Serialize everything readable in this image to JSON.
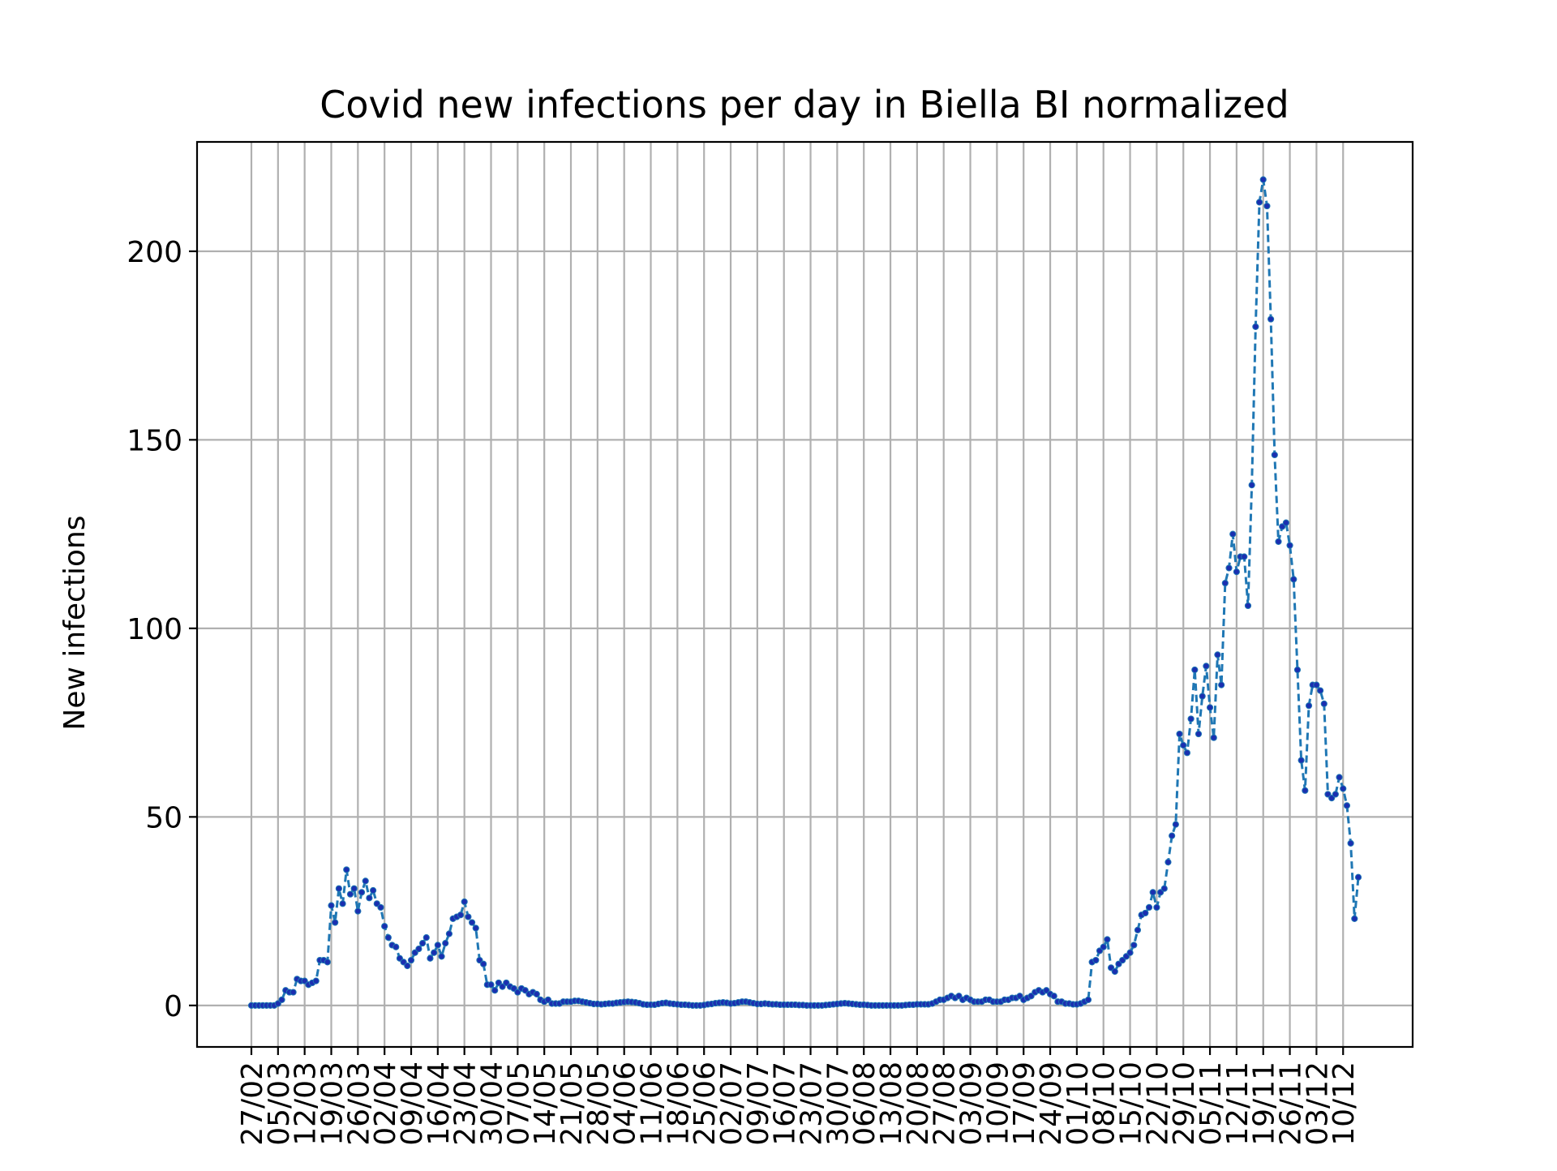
{
  "chart_data": {
    "type": "line",
    "title": "Covid new infections per day in Biella BI normalized",
    "xlabel": "",
    "ylabel": "New infections",
    "ylim": [
      -11,
      229
    ],
    "yticks": [
      0,
      50,
      100,
      150,
      200
    ],
    "grid": true,
    "line_style": "dashed",
    "marker": "dot",
    "colors": {
      "line": "#1f77b4",
      "marker": "#1a2fb0"
    },
    "xtick_labels": [
      "27/02",
      "05/03",
      "12/03",
      "19/03",
      "26/03",
      "02/04",
      "09/04",
      "16/04",
      "23/04",
      "30/04",
      "07/05",
      "14/05",
      "21/05",
      "28/05",
      "04/06",
      "11/06",
      "18/06",
      "25/06",
      "02/07",
      "09/07",
      "16/07",
      "23/07",
      "30/07",
      "06/08",
      "13/08",
      "20/08",
      "27/08",
      "03/09",
      "10/09",
      "17/09",
      "24/09",
      "01/10",
      "08/10",
      "15/10",
      "22/10",
      "29/10",
      "05/11",
      "12/11",
      "19/11",
      "26/11",
      "03/12",
      "10/12"
    ],
    "series": [
      {
        "values": [
          0,
          0,
          0,
          0,
          0,
          0,
          0,
          0.5,
          1.5,
          4,
          3.5,
          3.5,
          7,
          6.5,
          6.5,
          5.5,
          6,
          6.5,
          12,
          12,
          11.5,
          26.5,
          22,
          31,
          27,
          36,
          29.5,
          31,
          25,
          30,
          33,
          28.5,
          30.5,
          27,
          26,
          21,
          18,
          16,
          15.5,
          12.5,
          11.5,
          10.5,
          12,
          14,
          15,
          16.5,
          18,
          12.5,
          14,
          16,
          13,
          16.5,
          19,
          23,
          23.5,
          24,
          27.5,
          23.5,
          22,
          20.5,
          12,
          11,
          5.5,
          5.5,
          4,
          6,
          5,
          6,
          5,
          4.5,
          3.5,
          4.5,
          4,
          3,
          3.5,
          3,
          1.5,
          1,
          1.5,
          0.5,
          0.5,
          0.5,
          1,
          1,
          1,
          1.2,
          1.2,
          1,
          0.8,
          0.6,
          0.4,
          0.4,
          0.3,
          0.4,
          0.5,
          0.5,
          0.7,
          0.8,
          0.9,
          1,
          0.9,
          0.8,
          0.6,
          0.3,
          0.2,
          0.2,
          0.2,
          0.4,
          0.6,
          0.7,
          0.5,
          0.4,
          0.3,
          0.2,
          0.2,
          0.1,
          0,
          0,
          0,
          0.1,
          0.3,
          0.4,
          0.6,
          0.7,
          0.8,
          0.7,
          0.5,
          0.6,
          0.8,
          1,
          1,
          0.8,
          0.6,
          0.4,
          0.4,
          0.5,
          0.4,
          0.3,
          0.3,
          0.2,
          0.2,
          0.2,
          0.2,
          0.2,
          0.1,
          0.1,
          0,
          0,
          0,
          0,
          0,
          0.1,
          0.2,
          0.3,
          0.4,
          0.5,
          0.6,
          0.5,
          0.4,
          0.3,
          0.2,
          0.2,
          0.1,
          0,
          0,
          0,
          0,
          0,
          0,
          0,
          0,
          0,
          0.1,
          0.2,
          0.2,
          0.3,
          0.3,
          0.3,
          0.3,
          0.5,
          1,
          1.5,
          1.5,
          2,
          2.5,
          2,
          2.5,
          1.5,
          2,
          1.5,
          1,
          1,
          1,
          1.5,
          1.5,
          1,
          1,
          1,
          1.5,
          1.5,
          2,
          2,
          2.5,
          1.5,
          2,
          2.5,
          3.5,
          4,
          3.5,
          4,
          3,
          2.5,
          1,
          1,
          0.5,
          0.5,
          0.3,
          0.3,
          0.5,
          1,
          1.5,
          11.5,
          12,
          14.5,
          15.5,
          17.5,
          10,
          9,
          11,
          12,
          13,
          14,
          16,
          20,
          24,
          24.5,
          26,
          30,
          26,
          30,
          31,
          38,
          45,
          48,
          72,
          69,
          67,
          76,
          89,
          72,
          82,
          90,
          79,
          71,
          93,
          85,
          112,
          116,
          125,
          115,
          119,
          119,
          106,
          138,
          180,
          213,
          219,
          212,
          182,
          146,
          123,
          127,
          128,
          122,
          113,
          89,
          65,
          57,
          79.5,
          85,
          85,
          83.5,
          80,
          56,
          55,
          56,
          60.5,
          57.5,
          53,
          43,
          23,
          34
        ]
      }
    ]
  }
}
